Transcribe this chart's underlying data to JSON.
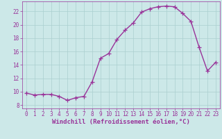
{
  "x": [
    0,
    1,
    2,
    3,
    4,
    5,
    6,
    7,
    8,
    9,
    10,
    11,
    12,
    13,
    14,
    15,
    16,
    17,
    18,
    19,
    20,
    21,
    22,
    23
  ],
  "y": [
    9.8,
    9.5,
    9.6,
    9.6,
    9.3,
    8.7,
    9.1,
    9.3,
    11.5,
    15.0,
    15.7,
    17.8,
    19.2,
    20.3,
    21.9,
    22.4,
    22.7,
    22.8,
    22.7,
    21.7,
    20.5,
    16.6,
    13.1,
    14.4
  ],
  "line_color": "#993399",
  "marker": "+",
  "marker_size": 4,
  "linewidth": 1.0,
  "xlabel": "Windchill (Refroidissement éolien,°C)",
  "xlabel_fontsize": 6.5,
  "xlim": [
    -0.5,
    23.5
  ],
  "ylim": [
    7.5,
    23.5
  ],
  "yticks": [
    8,
    10,
    12,
    14,
    16,
    18,
    20,
    22
  ],
  "xticks": [
    0,
    1,
    2,
    3,
    4,
    5,
    6,
    7,
    8,
    9,
    10,
    11,
    12,
    13,
    14,
    15,
    16,
    17,
    18,
    19,
    20,
    21,
    22,
    23
  ],
  "bg_color": "#cce8e8",
  "grid_color": "#aacfcf",
  "line_color2": "#993399",
  "tick_color": "#993399",
  "tick_fontsize": 5.5,
  "spine_color": "#993399"
}
